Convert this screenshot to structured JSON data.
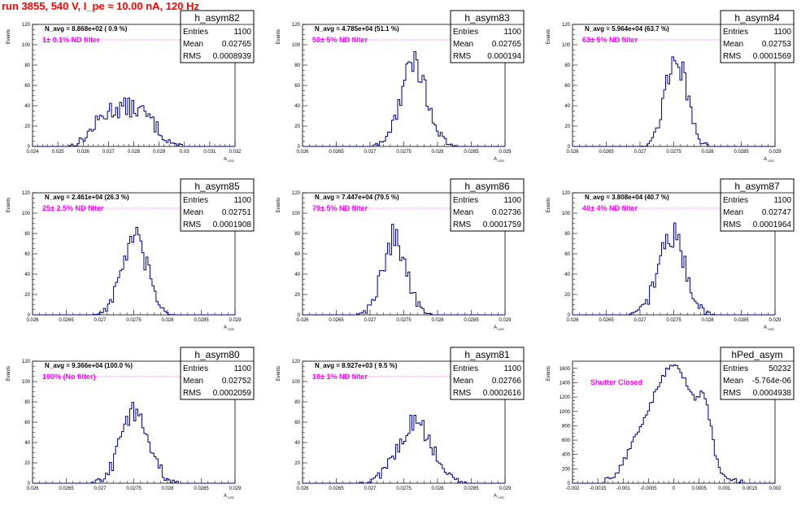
{
  "title": "run 3855,   540 V, I_pe ≈ 10.00 nA, 120 Hz",
  "colors": {
    "title": "#ff0000",
    "filter_text": "#ff00ff",
    "histogram": "#000080"
  },
  "chart_data": [
    {
      "type": "histogram",
      "name": "h_asym82",
      "n_avg": "N_avg = 8.868e+02 ( 0.9 %)",
      "filter": "1± 0.1% ND filter",
      "stats": {
        "entries": "1100",
        "mean": "0.02765",
        "rms": "0.0008939"
      },
      "xlabel": "A_LED",
      "ylabel": "Events",
      "xlim": [
        0.024,
        0.032
      ],
      "ylim": [
        0,
        120
      ],
      "xticks": [
        "0.024",
        "0.025",
        "0.026",
        "0.027",
        "0.028",
        "0.029",
        "0.03",
        "0.031",
        "0.032"
      ],
      "yticks": [
        "0",
        "20",
        "40",
        "60",
        "80",
        "100",
        "120"
      ],
      "mean": 0.02765,
      "sigma": 0.0008939,
      "peak": 38,
      "dist": "wide"
    },
    {
      "type": "histogram",
      "name": "h_asym83",
      "n_avg": "N_avg = 4.785e+04 (51.1 %)",
      "filter": "50± 5% ND filter",
      "stats": {
        "entries": "1100",
        "mean": "0.02765",
        "rms": "0.000194"
      },
      "xlabel": "A_LED",
      "ylabel": "Events",
      "xlim": [
        0.026,
        0.029
      ],
      "ylim": [
        0,
        120
      ],
      "xticks": [
        "0.026",
        "0.0265",
        "0.027",
        "0.0275",
        "0.028",
        "0.0285",
        "0.029"
      ],
      "yticks": [
        "0",
        "20",
        "40",
        "60",
        "80",
        "100",
        "120"
      ],
      "mean": 0.02765,
      "sigma": 0.000194,
      "peak": 82,
      "dist": "gauss"
    },
    {
      "type": "histogram",
      "name": "h_asym84",
      "n_avg": "N_avg = 5.964e+04 (63.7 %)",
      "filter": "63± 5% ND filter",
      "stats": {
        "entries": "1100",
        "mean": "0.02753",
        "rms": "0.0001569"
      },
      "xlabel": "A_LED",
      "ylabel": "Events",
      "xlim": [
        0.026,
        0.029
      ],
      "ylim": [
        0,
        120
      ],
      "xticks": [
        "0.026",
        "0.0265",
        "0.027",
        "0.0275",
        "0.028",
        "0.0285",
        "0.029"
      ],
      "yticks": [
        "0",
        "20",
        "40",
        "60",
        "80",
        "100",
        "120"
      ],
      "mean": 0.02753,
      "sigma": 0.0001569,
      "peak": 89,
      "dist": "gauss"
    },
    {
      "type": "histogram",
      "name": "h_asym85",
      "n_avg": "N_avg = 2.461e+04 (26.3 %)",
      "filter": "25± 2.5% ND filter",
      "stats": {
        "entries": "1100",
        "mean": "0.02751",
        "rms": "0.0001908"
      },
      "xlabel": "A_LED",
      "ylabel": "Events",
      "xlim": [
        0.026,
        0.029
      ],
      "ylim": [
        0,
        120
      ],
      "xticks": [
        "0.026",
        "0.0265",
        "0.027",
        "0.0275",
        "0.028",
        "0.0285",
        "0.029"
      ],
      "yticks": [
        "0",
        "20",
        "40",
        "60",
        "80",
        "100",
        "120"
      ],
      "mean": 0.02751,
      "sigma": 0.0001908,
      "peak": 74,
      "dist": "gauss"
    },
    {
      "type": "histogram",
      "name": "h_asym86",
      "n_avg": "N_avg = 7.447e+04 (79.5 %)",
      "filter": "79± 5% ND filter",
      "stats": {
        "entries": "1100",
        "mean": "0.02736",
        "rms": "0.0001759"
      },
      "xlabel": "A_LED",
      "ylabel": "Events",
      "xlim": [
        0.026,
        0.029
      ],
      "ylim": [
        0,
        120
      ],
      "xticks": [
        "0.026",
        "0.0265",
        "0.027",
        "0.0275",
        "0.028",
        "0.0285",
        "0.029"
      ],
      "yticks": [
        "0",
        "20",
        "40",
        "60",
        "80",
        "100",
        "120"
      ],
      "mean": 0.02736,
      "sigma": 0.0001759,
      "peak": 76,
      "dist": "gauss"
    },
    {
      "type": "histogram",
      "name": "h_asym87",
      "n_avg": "N_avg = 3.808e+04 (40.7 %)",
      "filter": "40± 4% ND filter",
      "stats": {
        "entries": "1100",
        "mean": "0.02747",
        "rms": "0.0001964"
      },
      "xlabel": "A_LED",
      "ylabel": "Events",
      "xlim": [
        0.026,
        0.029
      ],
      "ylim": [
        0,
        120
      ],
      "xticks": [
        "0.026",
        "0.0265",
        "0.027",
        "0.0275",
        "0.028",
        "0.0285",
        "0.029"
      ],
      "yticks": [
        "0",
        "20",
        "40",
        "60",
        "80",
        "100",
        "120"
      ],
      "mean": 0.02747,
      "sigma": 0.0001964,
      "peak": 79,
      "dist": "gauss"
    },
    {
      "type": "histogram",
      "name": "h_asym80",
      "n_avg": "N_avg = 9.366e+04 (100.0 %)",
      "filter": "100% (No filter)",
      "stats": {
        "entries": "1100",
        "mean": "0.02752",
        "rms": "0.0002059"
      },
      "xlabel": "A_LED",
      "ylabel": "Events",
      "xlim": [
        0.026,
        0.029
      ],
      "ylim": [
        0,
        120
      ],
      "xticks": [
        "0.026",
        "0.0265",
        "0.027",
        "0.0275",
        "0.028",
        "0.0285",
        "0.029"
      ],
      "yticks": [
        "0",
        "20",
        "40",
        "60",
        "80",
        "100",
        "120"
      ],
      "mean": 0.02752,
      "sigma": 0.0002059,
      "peak": 72,
      "dist": "gauss"
    },
    {
      "type": "histogram",
      "name": "h_asym81",
      "n_avg": "N_avg = 8.927e+03 ( 9.5 %)",
      "filter": "10± 1% ND filter",
      "stats": {
        "entries": "1100",
        "mean": "0.02766",
        "rms": "0.0002616"
      },
      "xlabel": "A_LED",
      "ylabel": "Events",
      "xlim": [
        0.026,
        0.029
      ],
      "ylim": [
        0,
        120
      ],
      "xticks": [
        "0.026",
        "0.0265",
        "0.027",
        "0.0275",
        "0.028",
        "0.0285",
        "0.029"
      ],
      "yticks": [
        "0",
        "20",
        "40",
        "60",
        "80",
        "100",
        "120"
      ],
      "mean": 0.02766,
      "sigma": 0.0002616,
      "peak": 58,
      "dist": "gauss"
    },
    {
      "type": "histogram",
      "name": "hPed_asym",
      "n_avg": "",
      "filter": "Shutter Closed",
      "stats": {
        "entries": "50232",
        "mean": "-5.764e-06",
        "rms": "0.0004938"
      },
      "xlabel": "",
      "ylabel": "Events",
      "xlim": [
        -0.002,
        0.002
      ],
      "ylim": [
        0,
        1700
      ],
      "xticks": [
        "-0.002",
        "-0.0015",
        "-0.001",
        "-0.0005",
        "0",
        "0.0005",
        "0.001",
        "0.0015",
        "0.002"
      ],
      "yticks": [
        "0",
        "200",
        "400",
        "600",
        "800",
        "1000",
        "1200",
        "1400",
        "1600"
      ],
      "mean": -5.764e-06,
      "sigma": 0.0004938,
      "peak": 1620,
      "dist": "pedestal"
    }
  ]
}
